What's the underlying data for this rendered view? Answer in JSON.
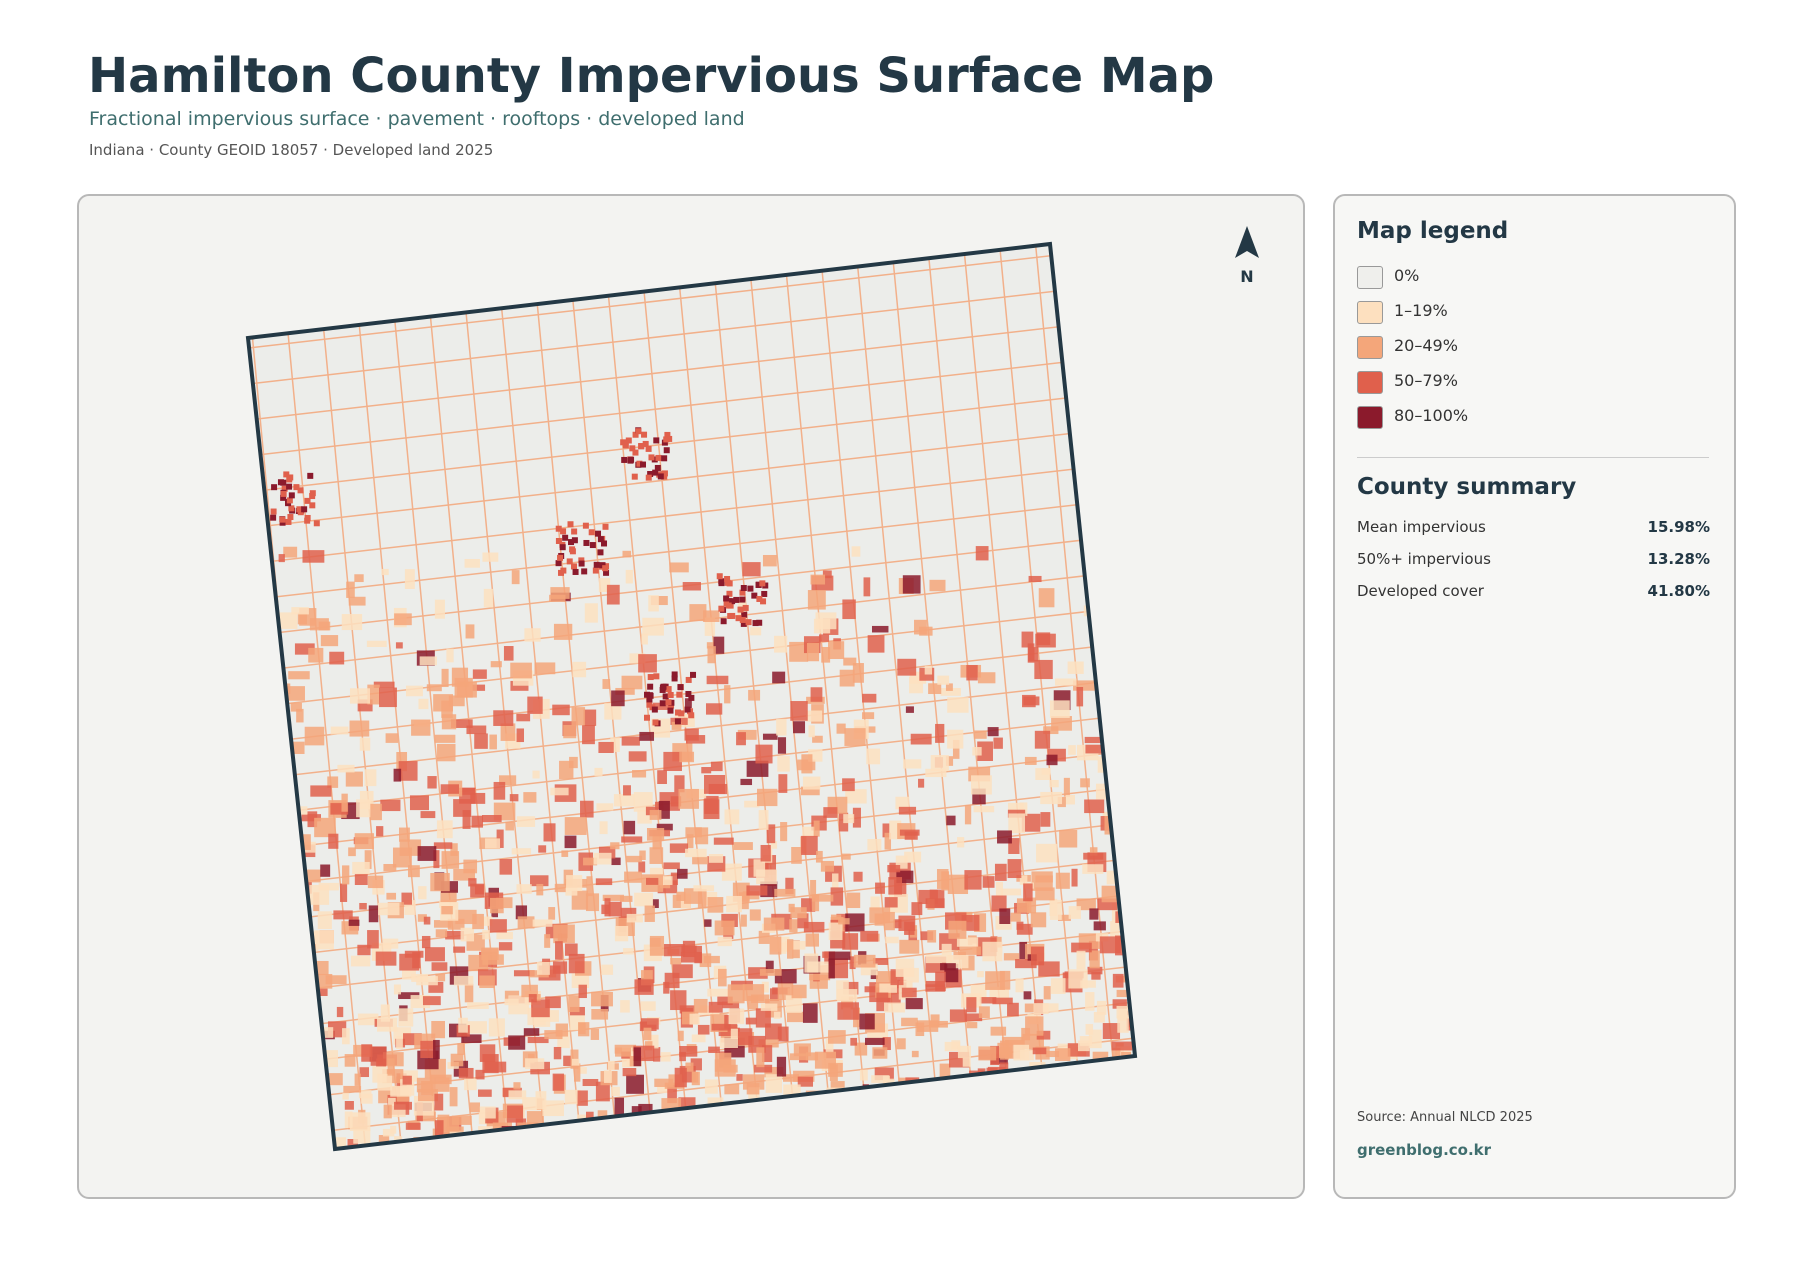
{
  "header": {
    "title": "Hamilton County Impervious Surface Map",
    "subtitle": "Fractional impervious surface · pavement · rooftops · developed land",
    "meta": "Indiana · County GEOID 18057 · Developed land 2025"
  },
  "map": {
    "north": "N"
  },
  "legend": {
    "title": "Map legend",
    "items": [
      {
        "label": "0%",
        "color": "#efefec"
      },
      {
        "label": "1–19%",
        "color": "#fde0bf"
      },
      {
        "label": "20–49%",
        "color": "#f4a67a"
      },
      {
        "label": "50–79%",
        "color": "#e0604c"
      },
      {
        "label": "80–100%",
        "color": "#8b1a2c"
      }
    ]
  },
  "summary": {
    "title": "County summary",
    "rows": [
      {
        "label": "Mean impervious",
        "value": "15.98%"
      },
      {
        "label": "50%+ impervious",
        "value": "13.28%"
      },
      {
        "label": "Developed cover",
        "value": "41.80%"
      }
    ]
  },
  "footer": {
    "source": "Source: Annual NLCD 2025",
    "site": "greenblog.co.kr"
  }
}
